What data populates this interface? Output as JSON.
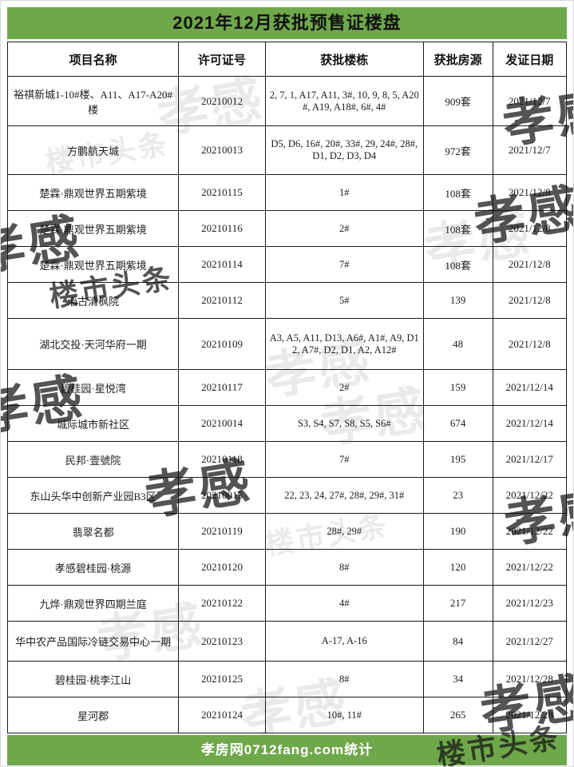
{
  "title": "2021年12月获批预售证楼盘",
  "footer": "孝房网0712fang.com统计",
  "colors": {
    "accent_green": "#6fa84b",
    "border": "#1a1a1a",
    "title_text": "#111111",
    "footer_text": "#ffffff"
  },
  "watermark": {
    "stamp_main": "孝感",
    "stamp_sub": "楼市头条"
  },
  "table": {
    "headers": [
      "项目名称",
      "许可证号",
      "获批楼栋",
      "获批房源",
      "发证日期"
    ],
    "rows": [
      {
        "name": "裕祺新城1-10#楼、A11、A17-A20#楼",
        "permit": "20210012",
        "buildings": "2, 7, 1, A17, A11, 3#, 10, 9, 8, 5, A20#, A19, A18#, 6#, 4#",
        "units": "909套",
        "date": "2021/12/7"
      },
      {
        "name": "方鹏航天城",
        "permit": "20210013",
        "buildings": "D5, D6, 16#, 20#, 33#, 29, 24#, 28#, D1, D2, D3, D4",
        "units": "972套",
        "date": "2021/12/7"
      },
      {
        "name": "楚霖·鼎观世界五期紫境",
        "permit": "20210115",
        "buildings": "1#",
        "units": "108套",
        "date": "2021/12/8"
      },
      {
        "name": "楚霖·鼎观世界五期紫境",
        "permit": "20210116",
        "buildings": "2#",
        "units": "108套",
        "date": "2021/12/8"
      },
      {
        "name": "楚霖·鼎观世界五期紫境",
        "permit": "20210114",
        "buildings": "7#",
        "units": "108套",
        "date": "2021/12/8"
      },
      {
        "name": "滔古清枫院",
        "permit": "20210112",
        "buildings": "5#",
        "units": "139",
        "date": "2021/12/8"
      },
      {
        "name": "湖北交投·天河华府一期",
        "permit": "20210109",
        "buildings": "A3, A5, A11, D13, A6#, A1#, A9, D12, A7#, D2, D1, A2, A12#",
        "units": "48",
        "date": "2021/12/8"
      },
      {
        "name": "碧桂园·星悦湾",
        "permit": "20210117",
        "buildings": "2#",
        "units": "159",
        "date": "2021/12/14"
      },
      {
        "name": "城际城市新社区",
        "permit": "20210014",
        "buildings": "S3, S4, S7, S8, S5, S6#",
        "units": "674",
        "date": "2021/12/14"
      },
      {
        "name": "民邦·壹號院",
        "permit": "20210118",
        "buildings": "7#",
        "units": "195",
        "date": "2021/12/17"
      },
      {
        "name": "东山头华中创新产业园B3区",
        "permit": "20210015",
        "buildings": "22, 23, 24, 27#, 28#, 29#, 31#",
        "units": "23",
        "date": "2021/12/22"
      },
      {
        "name": "翡翠名都",
        "permit": "20210119",
        "buildings": "28#, 29#",
        "units": "190",
        "date": "2021/12/22"
      },
      {
        "name": "孝感碧桂园·桃源",
        "permit": "20210120",
        "buildings": "8#",
        "units": "120",
        "date": "2021/12/22"
      },
      {
        "name": "九烨·鼎观世界四期兰庭",
        "permit": "20210122",
        "buildings": "4#",
        "units": "217",
        "date": "2021/12/23"
      },
      {
        "name": "华中农产品国际冷链交易中心一期",
        "permit": "20210123",
        "buildings": "A-17, A-16",
        "units": "84",
        "date": "2021/12/27"
      },
      {
        "name": "碧桂园·桃李江山",
        "permit": "20210125",
        "buildings": "8#",
        "units": "34",
        "date": "2021/12/28"
      },
      {
        "name": "星河郡",
        "permit": "20210124",
        "buildings": "10#, 11#",
        "units": "265",
        "date": "2021/12/28"
      }
    ]
  }
}
